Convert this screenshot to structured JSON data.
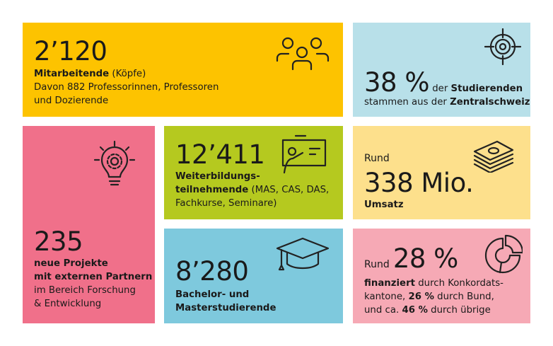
{
  "tiles": {
    "staff": {
      "color": "#fdc300",
      "number": "2’120",
      "bold": "Mitarbeitende",
      "rest": " (Köpfe)",
      "line2": "Davon 882 Professorinnen, Professoren",
      "line3": "und Dozierende",
      "icon": "people-icon"
    },
    "origin": {
      "color": "#b8e0e9",
      "number": "38 %",
      "text1": " der ",
      "bold1": "Studierenden",
      "line2a": "stammen aus der ",
      "bold2": "Zentralschweiz",
      "icon": "target-icon"
    },
    "projects": {
      "color": "#f0708a",
      "number": "235",
      "bold1": "neue Projekte",
      "bold2": "mit externen Partnern",
      "line3": "im Bereich Forschung",
      "line4": "& Entwicklung",
      "icon": "lightbulb-gear-icon"
    },
    "continuing": {
      "color": "#b5c91f",
      "number": "12’411",
      "bold": "Weiterbildungs-",
      "bold2": "teilnehmende",
      "rest2": " (MAS, CAS, DAS,",
      "line3": "Fachkurse, Seminare)",
      "icon": "presentation-board-icon"
    },
    "revenue": {
      "color": "#fde08c",
      "prefix": "Rund",
      "number": "338 Mio.",
      "bold": "Umsatz",
      "icon": "money-stack-icon"
    },
    "students": {
      "color": "#7ec9dd",
      "number": "8’280",
      "line1": "Bachelor- und",
      "line2": "Masterstudierende",
      "icon": "graduation-cap-icon"
    },
    "funding": {
      "color": "#f6a9b5",
      "prefix": "Rund",
      "number": "28 %",
      "bold1": "finanziert",
      "rest1": " durch Konkordats-",
      "line2a": "kantone, ",
      "bold2": "26 %",
      "line2b": " durch Bund,",
      "line3a": "und ca. ",
      "bold3": "46 %",
      "line3b": " durch übrige",
      "icon": "pie-chart-icon"
    }
  }
}
